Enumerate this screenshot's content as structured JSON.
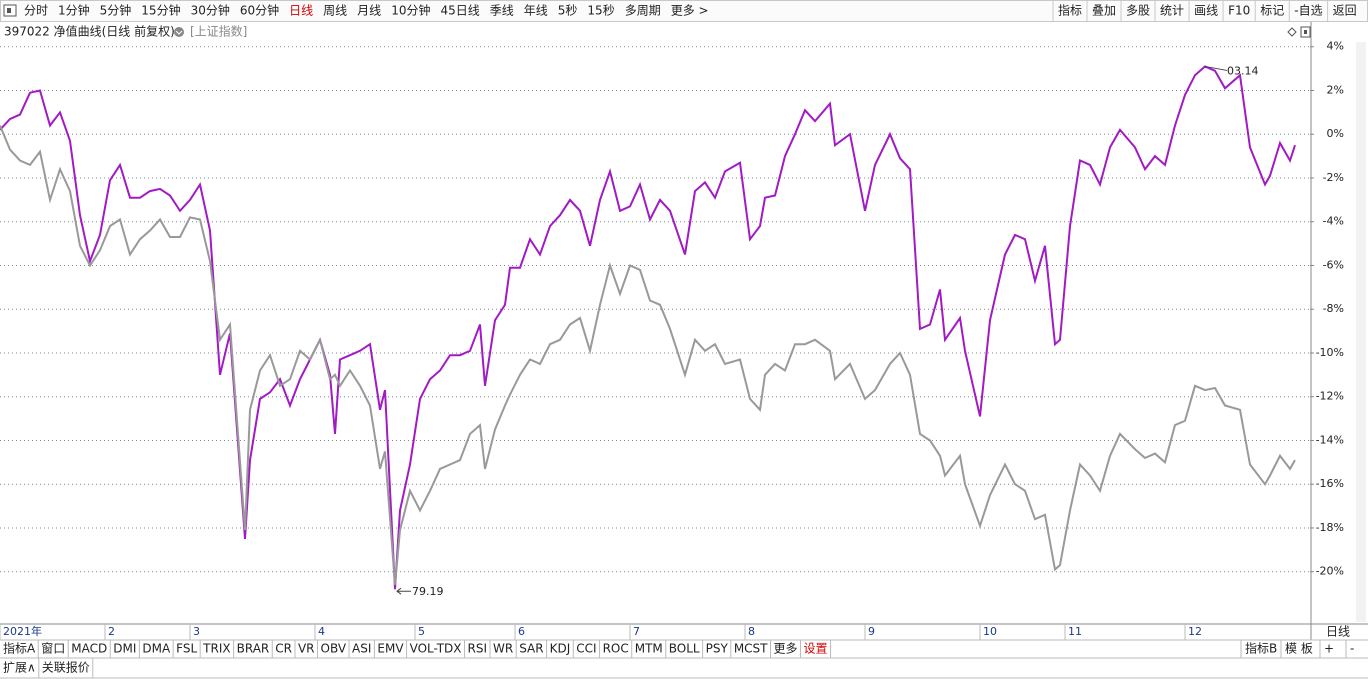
{
  "toolbar": {
    "items": [
      "分时",
      "1分钟",
      "5分钟",
      "15分钟",
      "30分钟",
      "60分钟",
      "日线",
      "周线",
      "月线",
      "10分钟",
      "45日线",
      "季线",
      "年线",
      "5秒",
      "15秒",
      "多周期",
      "更多 >"
    ],
    "active": 6,
    "right_items": [
      "指标",
      "叠加",
      "多股",
      "统计",
      "画线",
      "F10",
      "标记",
      "-自选",
      "返回"
    ]
  },
  "header": {
    "title": "397022 净值曲线(日线 前复权)",
    "compare": "[上证指数]"
  },
  "chart_data": {
    "type": "line",
    "grid": true,
    "period": "日线",
    "x": [
      0,
      2,
      4,
      6,
      8,
      10,
      12,
      14,
      16,
      18,
      20,
      22,
      24,
      26,
      28,
      30,
      32,
      34,
      36,
      38,
      40,
      42,
      44,
      46,
      49,
      50,
      52,
      54,
      56,
      58,
      60,
      62,
      64,
      66,
      67,
      68,
      70,
      72,
      74,
      76,
      77,
      79,
      80,
      82,
      84,
      86,
      88,
      90,
      92,
      94,
      96,
      97,
      99,
      101,
      102,
      104,
      106,
      108,
      110,
      112,
      114,
      116,
      118,
      120,
      122,
      124,
      126,
      128,
      130,
      132,
      134,
      137,
      139,
      141,
      143,
      145,
      148,
      150,
      152,
      153,
      155,
      157,
      159,
      161,
      163,
      166,
      167,
      170,
      173,
      175,
      178,
      180,
      182,
      184,
      186,
      188,
      189,
      192,
      193,
      196,
      198,
      201,
      203,
      205,
      207,
      209,
      211,
      212,
      214,
      216,
      218,
      220,
      222,
      224,
      227,
      229,
      231,
      233,
      235,
      237,
      239,
      241,
      243,
      245,
      248,
      250,
      253,
      254,
      256,
      258,
      259
    ],
    "series": [
      {
        "color": "#a21ac4",
        "values": [
          0.2,
          0.7,
          0.9,
          1.9,
          2.0,
          0.4,
          1.0,
          -0.3,
          -3.7,
          -5.8,
          -4.6,
          -2.1,
          -1.4,
          -2.9,
          -2.9,
          -2.6,
          -2.5,
          -2.8,
          -3.5,
          -3.0,
          -2.3,
          -4.4,
          -11.0,
          -9.1,
          -18.5,
          -14.9,
          -12.1,
          -11.8,
          -11.2,
          -12.4,
          -11.2,
          -10.3,
          -9.4,
          -11.0,
          -13.7,
          -10.3,
          -10.1,
          -9.9,
          -9.6,
          -12.6,
          -11.7,
          -20.8,
          -17.2,
          -15.1,
          -12.1,
          -11.2,
          -10.8,
          -10.1,
          -10.1,
          -9.9,
          -8.7,
          -11.5,
          -8.5,
          -7.8,
          -6.1,
          -6.1,
          -4.8,
          -5.5,
          -4.2,
          -3.7,
          -3.0,
          -3.5,
          -5.1,
          -3.0,
          -1.7,
          -3.5,
          -3.3,
          -2.3,
          -3.9,
          -3.0,
          -3.5,
          -5.5,
          -2.6,
          -2.2,
          -2.9,
          -1.7,
          -1.3,
          -4.8,
          -4.2,
          -2.9,
          -2.8,
          -1.0,
          0.0,
          1.1,
          0.6,
          1.4,
          -0.5,
          0.0,
          -3.5,
          -1.4,
          0.0,
          -1.1,
          -1.6,
          -8.9,
          -8.7,
          -7.1,
          -9.4,
          -8.4,
          -9.9,
          -12.9,
          -8.5,
          -5.5,
          -4.6,
          -4.8,
          -6.7,
          -5.1,
          -9.6,
          -9.4,
          -4.2,
          -1.2,
          -1.4,
          -2.3,
          -0.6,
          0.2,
          -0.6,
          -1.6,
          -1.0,
          -1.4,
          0.4,
          1.8,
          2.7,
          3.1,
          2.9,
          2.1,
          2.7,
          -0.6,
          -2.3,
          -1.9,
          -0.4,
          -1.2,
          -0.5
        ]
      },
      {
        "color": "#999999",
        "values": [
          0.4,
          -0.7,
          -1.2,
          -1.4,
          -0.8,
          -3.0,
          -1.6,
          -2.6,
          -5.1,
          -6.0,
          -5.3,
          -4.2,
          -3.9,
          -5.5,
          -4.8,
          -4.4,
          -3.9,
          -4.7,
          -4.7,
          -3.8,
          -3.9,
          -5.8,
          -9.4,
          -8.7,
          -18.1,
          -12.6,
          -10.8,
          -10.1,
          -11.5,
          -11.2,
          -9.9,
          -10.3,
          -9.4,
          -11.2,
          -11.0,
          -11.5,
          -10.8,
          -11.5,
          -12.4,
          -15.3,
          -14.5,
          -20.6,
          -18.1,
          -16.3,
          -17.2,
          -16.3,
          -15.3,
          -15.1,
          -14.9,
          -13.7,
          -13.3,
          -15.3,
          -13.5,
          -12.4,
          -11.9,
          -11.0,
          -10.3,
          -10.5,
          -9.6,
          -9.4,
          -8.7,
          -8.4,
          -9.9,
          -7.8,
          -6.0,
          -7.3,
          -6.0,
          -6.2,
          -7.6,
          -7.8,
          -8.9,
          -11.0,
          -9.4,
          -9.9,
          -9.6,
          -10.5,
          -10.3,
          -12.1,
          -12.6,
          -11.0,
          -10.5,
          -10.8,
          -9.6,
          -9.6,
          -9.4,
          -9.9,
          -11.2,
          -10.5,
          -12.1,
          -11.7,
          -10.5,
          -10.0,
          -11.0,
          -13.7,
          -14.0,
          -14.7,
          -15.6,
          -14.7,
          -16.0,
          -17.9,
          -16.5,
          -15.1,
          -16.0,
          -16.3,
          -17.6,
          -17.4,
          -19.9,
          -19.7,
          -17.2,
          -15.1,
          -15.6,
          -16.3,
          -14.7,
          -13.7,
          -14.4,
          -14.8,
          -14.6,
          -15.0,
          -13.3,
          -13.1,
          -11.5,
          -11.7,
          -11.6,
          -12.4,
          -12.6,
          -15.1,
          -16.0,
          -15.6,
          -14.7,
          -15.3,
          -14.9
        ]
      }
    ],
    "annotations": {
      "max": "03.14",
      "min": "79.19"
    },
    "xlim": [
      0,
      262
    ],
    "xticks": [
      {
        "value": 0,
        "label": "2021年"
      },
      {
        "value": 21,
        "label": "2"
      },
      {
        "value": 38,
        "label": "3"
      },
      {
        "value": 63,
        "label": "4"
      },
      {
        "value": 83,
        "label": "5"
      },
      {
        "value": 103,
        "label": "6"
      },
      {
        "value": 126,
        "label": "7"
      },
      {
        "value": 149,
        "label": "8"
      },
      {
        "value": 173,
        "label": "9"
      },
      {
        "value": 196,
        "label": "10"
      },
      {
        "value": 213,
        "label": "11"
      },
      {
        "value": 237,
        "label": "12"
      }
    ],
    "ylim": [
      -22.3,
      4.4
    ],
    "yticks": [
      {
        "value": 4,
        "label": "4%"
      },
      {
        "value": 2,
        "label": "2%"
      },
      {
        "value": 0,
        "label": "0%"
      },
      {
        "value": -2,
        "label": "-2%"
      },
      {
        "value": -4,
        "label": "-4%"
      },
      {
        "value": -6,
        "label": "-6%"
      },
      {
        "value": -8,
        "label": "-8%"
      },
      {
        "value": -10,
        "label": "-10%"
      },
      {
        "value": -12,
        "label": "-12%"
      },
      {
        "value": -14,
        "label": "-14%"
      },
      {
        "value": -16,
        "label": "-16%"
      },
      {
        "value": -18,
        "label": "-18%"
      },
      {
        "value": -20,
        "label": "-20%"
      }
    ]
  },
  "indicator_tabs": {
    "left": [
      "指标A",
      "窗口",
      "MACD",
      "DMI",
      "DMA",
      "FSL",
      "TRIX",
      "BRAR",
      "CR",
      "VR",
      "OBV",
      "ASI",
      "EMV",
      "VOL-TDX",
      "RSI",
      "WR",
      "SAR",
      "KDJ",
      "CCI",
      "ROC",
      "MTM",
      "BOLL",
      "PSY",
      "MCST",
      "更多",
      "设置"
    ],
    "active": 25,
    "right": [
      "指标B",
      "模 板",
      "+",
      "-"
    ]
  },
  "footer_tabs": [
    "扩展∧",
    "关联报价"
  ]
}
